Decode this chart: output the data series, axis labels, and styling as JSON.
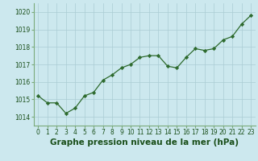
{
  "x": [
    0,
    1,
    2,
    3,
    4,
    5,
    6,
    7,
    8,
    9,
    10,
    11,
    12,
    13,
    14,
    15,
    16,
    17,
    18,
    19,
    20,
    21,
    22,
    23
  ],
  "y": [
    1015.2,
    1014.8,
    1014.8,
    1014.2,
    1014.5,
    1015.2,
    1015.4,
    1016.1,
    1016.4,
    1016.8,
    1017.0,
    1017.4,
    1017.5,
    1017.5,
    1016.9,
    1016.8,
    1017.4,
    1017.9,
    1017.8,
    1017.9,
    1018.4,
    1018.6,
    1019.3,
    1019.8
  ],
  "ylim": [
    1013.5,
    1020.5
  ],
  "xlim": [
    -0.5,
    23.5
  ],
  "yticks": [
    1014,
    1015,
    1016,
    1017,
    1018,
    1019,
    1020
  ],
  "xticks": [
    0,
    1,
    2,
    3,
    4,
    5,
    6,
    7,
    8,
    9,
    10,
    11,
    12,
    13,
    14,
    15,
    16,
    17,
    18,
    19,
    20,
    21,
    22,
    23
  ],
  "line_color": "#2d6a2d",
  "marker": "D",
  "marker_size": 2.2,
  "line_width": 0.9,
  "bg_color": "#cce8ee",
  "grid_color": "#aaccd4",
  "xlabel": "Graphe pression niveau de la mer (hPa)",
  "xlabel_color": "#1a4f1a",
  "tick_color": "#1a4f1a",
  "tick_fontsize": 5.5,
  "xlabel_fontsize": 7.5,
  "xlabel_bold": true,
  "border_color": "#7aaa7a"
}
